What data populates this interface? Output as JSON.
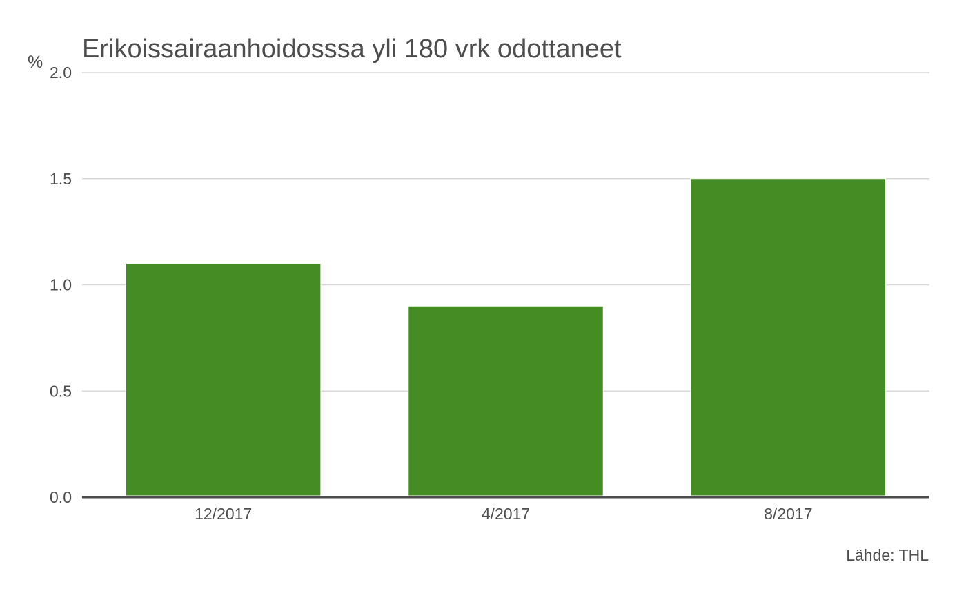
{
  "chart_data": {
    "type": "bar",
    "title": "Erikoissairaanhoidosssa yli 180 vrk odottaneet",
    "ylabel": "%",
    "xlabel": "",
    "categories": [
      "12/2017",
      "4/2017",
      "8/2017"
    ],
    "values": [
      1.1,
      0.9,
      1.5
    ],
    "ylim": [
      0,
      2.0
    ],
    "yticks": [
      "0.0",
      "0.5",
      "1.0",
      "1.5",
      "2.0"
    ],
    "grid": true,
    "legend": "none",
    "source": "Lähde: THL",
    "colors": {
      "bar": "#468c25",
      "text": "#4d4d4d",
      "grid": "#d9d9d9",
      "axis": "#4d4d4d"
    }
  }
}
